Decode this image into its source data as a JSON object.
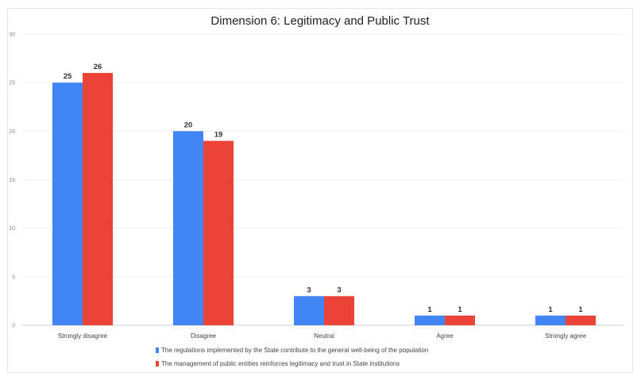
{
  "chart_data": {
    "type": "bar",
    "title": "Dimension 6: Legitimacy and Public Trust",
    "xlabel": "",
    "ylabel": "",
    "ylim": [
      0,
      30
    ],
    "yticks": [
      "0",
      "5",
      "10",
      "15",
      "20",
      "25",
      "30"
    ],
    "grid": true,
    "legend_placement": "bottom",
    "categories": [
      "Strongly disagree",
      "Disagree",
      "Neutral",
      "Agree",
      "Strongly agree"
    ],
    "series": [
      {
        "name": "The regulations implemented by the State contribute to the general well-being of the population",
        "color": "#4285f4",
        "values": [
          25,
          20,
          3,
          1,
          1
        ]
      },
      {
        "name": "The management of public entities reinforces legitimacy and trust in State institutions",
        "color": "#ea4335",
        "values": [
          26,
          19,
          3,
          1,
          1
        ]
      }
    ]
  }
}
